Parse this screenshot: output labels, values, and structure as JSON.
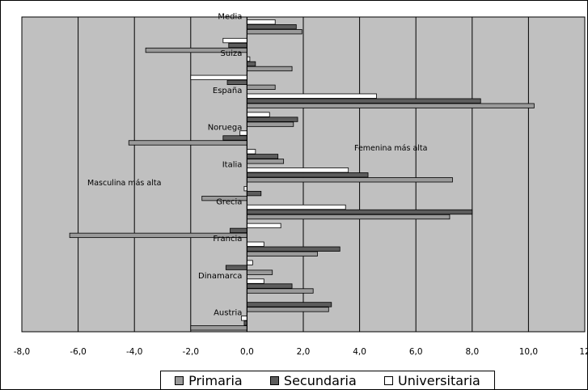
{
  "colors": {
    "plot_bg": "#c0c0c0",
    "primaria": "#9a9a9a",
    "secundaria": "#5c5c5c",
    "universitaria": "#ffffff"
  },
  "chart_data": {
    "type": "bar",
    "orientation": "horizontal",
    "categories": [
      "Media",
      "Suiza",
      "España",
      "Noruega",
      "Italia",
      "Grecia",
      "Francia",
      "Dinamarca",
      "Austria"
    ],
    "groups": [
      {
        "label": "Media",
        "show_label": true,
        "values": {
          "Primaria": 1.95,
          "Secundaria": 1.75,
          "Universitaria": 1.0
        }
      },
      {
        "label": "",
        "show_label": false,
        "values": {
          "Primaria": -3.6,
          "Secundaria": -0.65,
          "Universitaria": -0.85
        }
      },
      {
        "label": "Suiza",
        "show_label": true,
        "values": {
          "Primaria": 1.6,
          "Secundaria": 0.3,
          "Universitaria": 0.1
        }
      },
      {
        "label": "",
        "show_label": false,
        "values": {
          "Primaria": 1.0,
          "Secundaria": -0.7,
          "Universitaria": -2.0
        }
      },
      {
        "label": "España",
        "show_label": true,
        "values": {
          "Primaria": 10.2,
          "Secundaria": 8.3,
          "Universitaria": 4.6
        }
      },
      {
        "label": "",
        "show_label": false,
        "values": {
          "Primaria": 1.65,
          "Secundaria": 1.8,
          "Universitaria": 0.8
        }
      },
      {
        "label": "Noruega",
        "show_label": true,
        "values": {
          "Primaria": -4.2,
          "Secundaria": -0.85,
          "Universitaria": -0.25
        }
      },
      {
        "label": "",
        "show_label": false,
        "values": {
          "Primaria": 1.3,
          "Secundaria": 1.1,
          "Universitaria": 0.3
        }
      },
      {
        "label": "Italia",
        "show_label": true,
        "values": {
          "Primaria": 7.3,
          "Secundaria": 4.3,
          "Universitaria": 3.6
        }
      },
      {
        "label": "",
        "show_label": false,
        "values": {
          "Primaria": -1.6,
          "Secundaria": 0.5,
          "Universitaria": -0.1
        }
      },
      {
        "label": "Grecia",
        "show_label": true,
        "values": {
          "Primaria": 7.2,
          "Secundaria": 8.0,
          "Universitaria": 3.5
        }
      },
      {
        "label": "",
        "show_label": false,
        "values": {
          "Primaria": -6.3,
          "Secundaria": -0.6,
          "Universitaria": 1.2
        }
      },
      {
        "label": "Francia",
        "show_label": true,
        "values": {
          "Primaria": 2.5,
          "Secundaria": 3.3,
          "Universitaria": 0.6
        }
      },
      {
        "label": "",
        "show_label": false,
        "values": {
          "Primaria": 0.9,
          "Secundaria": -0.75,
          "Universitaria": 0.2
        }
      },
      {
        "label": "Dinamarca",
        "show_label": true,
        "values": {
          "Primaria": 2.35,
          "Secundaria": 1.6,
          "Universitaria": 0.6
        }
      },
      {
        "label": "",
        "show_label": false,
        "values": {
          "Primaria": 2.9,
          "Secundaria": 3.0,
          "Universitaria": 0.0
        }
      },
      {
        "label": "Austria",
        "show_label": true,
        "values": {
          "Primaria": -2.0,
          "Secundaria": -0.1,
          "Universitaria": -0.2
        }
      }
    ],
    "series": [
      "Primaria",
      "Secundaria",
      "Universitaria"
    ],
    "x_ticks": [
      "-8,0",
      "-6,0",
      "-4,0",
      "-2,0",
      "0,0",
      "2,0",
      "4,0",
      "6,0",
      "8,0",
      "10,0",
      "12"
    ],
    "xlim": [
      -8,
      12
    ],
    "grid": "vertical",
    "annotations": {
      "right": "Femenina más alta",
      "left": "Masculina más alta"
    },
    "legend": {
      "position": "bottom",
      "items": [
        "Primaria",
        "Secundaria",
        "Universitaria"
      ]
    },
    "title": "",
    "xlabel": "",
    "ylabel": ""
  }
}
